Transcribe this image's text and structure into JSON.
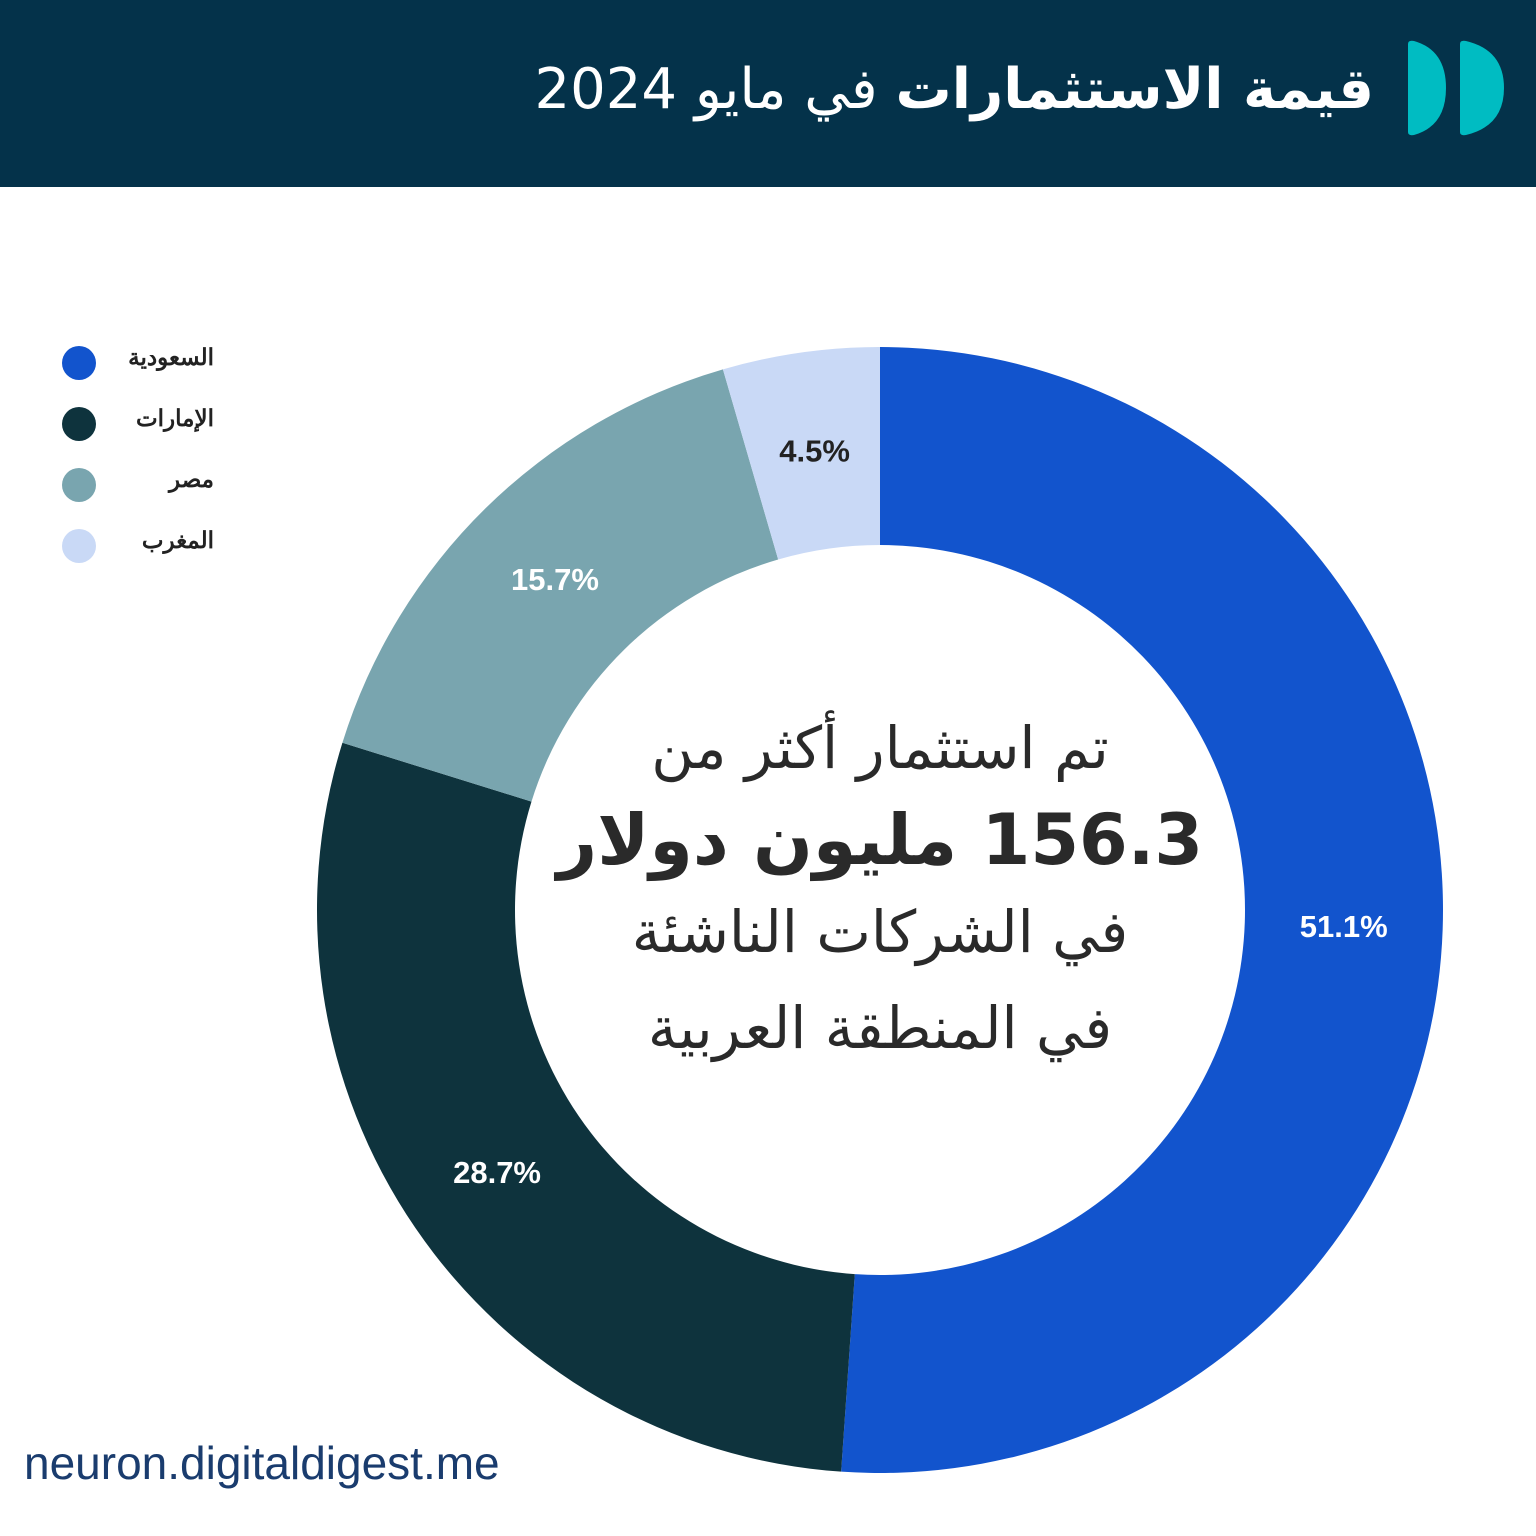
{
  "header": {
    "title_bold": "قيمة الاستثمارات",
    "title_rest": "في مايو 2024",
    "logo_icon": "double-d-logo-icon",
    "background": "#04324a",
    "logo_color": "#00bcc2"
  },
  "chart_data": {
    "type": "pie",
    "donut": true,
    "start": "top",
    "direction": "clockwise",
    "legend_position": "top-left",
    "categories": [
      "السعودية",
      "الإمارات",
      "مصر",
      "المغرب"
    ],
    "values": [
      51.1,
      28.7,
      15.7,
      4.5
    ],
    "data_labels": [
      "51.1%",
      "28.7%",
      "15.7%",
      "4.5%"
    ],
    "colors": [
      "#1254cd",
      "#0e333d",
      "#79a5af",
      "#c9d9f6"
    ],
    "label_colors": [
      "#ffffff",
      "#ffffff",
      "#ffffff",
      "#222222"
    ]
  },
  "center_text": {
    "line1": "تم استثمار أكثر من",
    "line2": "156.3 مليون دولار",
    "line3": "في الشركات الناشئة",
    "line4": "في المنطقة العربية"
  },
  "footer": {
    "website": "neuron.digitaldigest.me"
  }
}
